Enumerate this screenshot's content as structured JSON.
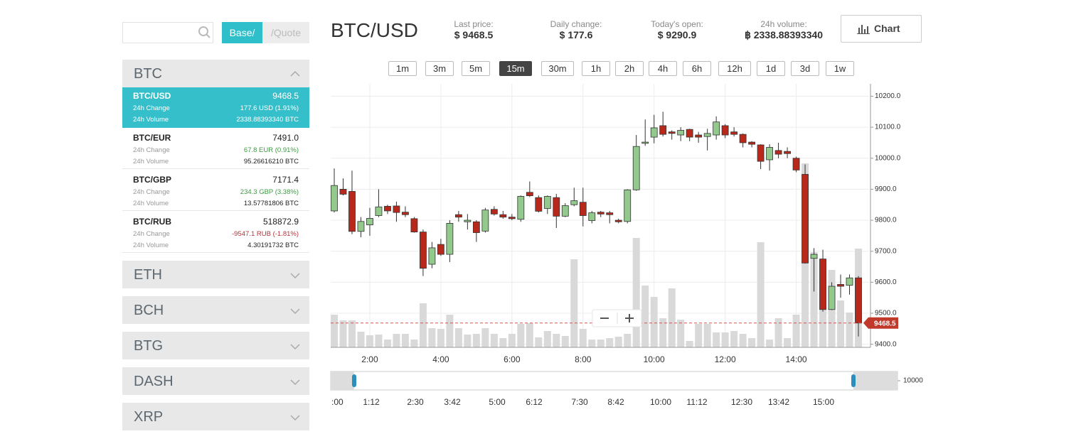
{
  "sidebar": {
    "toggle": [
      "Base/",
      "/Quote"
    ],
    "groups": [
      {
        "name": "BTC",
        "pairs": [
          {
            "pair": "BTC/USD",
            "price": "9468.5",
            "change_label": "24h Change",
            "change": "177.6 USD (1.91%)",
            "volume_label": "24h Volume",
            "volume": "2338.88393340 BTC"
          },
          {
            "pair": "BTC/EUR",
            "price": "7491.0",
            "change_label": "24h Change",
            "change": "67.8 EUR (0.91%)",
            "volume_label": "24h Volume",
            "volume": "95.26616210 BTC"
          },
          {
            "pair": "BTC/GBP",
            "price": "7171.4",
            "change_label": "24h Change",
            "change": "234.3 GBP (3.38%)",
            "volume_label": "24h Volume",
            "volume": "13.57781806 BTC"
          },
          {
            "pair": "BTC/RUB",
            "price": "518872.9",
            "change_label": "24h Change",
            "change": "-9547.1 RUB (-1.81%)",
            "volume_label": "24h Volume",
            "volume": "4.30191732 BTC"
          }
        ]
      },
      {
        "name": "ETH"
      },
      {
        "name": "BCH"
      },
      {
        "name": "BTG"
      },
      {
        "name": "DASH"
      },
      {
        "name": "XRP"
      }
    ]
  },
  "header": {
    "pair": "BTC/USD",
    "stats": [
      {
        "label": "Last price:",
        "value": "$ 9468.5"
      },
      {
        "label": "Daily change:",
        "value": "$ 177.6"
      },
      {
        "label": "Today's open:",
        "value": "$ 9290.9"
      },
      {
        "label": "24h volume:",
        "value": "฿ 2338.88393340"
      }
    ],
    "chart_button": "Chart"
  },
  "timeframes": [
    "1m",
    "3m",
    "5m",
    "15m",
    "30m",
    "1h",
    "2h",
    "4h",
    "6h",
    "12h",
    "1d",
    "3d",
    "1w"
  ],
  "active_timeframe": 3,
  "chart_data": {
    "type": "candlestick",
    "categories": [
      null,
      null,
      null,
      null,
      "2:00",
      null,
      null,
      null,
      null,
      null,
      null,
      null,
      "4:00",
      null,
      null,
      null,
      null,
      null,
      null,
      null,
      "6:00",
      null,
      null,
      null,
      null,
      null,
      null,
      null,
      "8:00",
      null,
      null,
      null,
      null,
      null,
      null,
      null,
      "10:00",
      null,
      null,
      null,
      null,
      null,
      null,
      null,
      "12:00",
      null,
      null,
      null,
      null,
      null,
      null,
      null,
      "14:00",
      null,
      null,
      null,
      null,
      null,
      null,
      null
    ],
    "open": [
      9830,
      9900,
      9893,
      9764,
      9785,
      9815,
      9845,
      9846,
      9826,
      9805,
      9762,
      9658,
      9722,
      9690,
      9818,
      9795,
      9795,
      9765,
      9835,
      9818,
      9810,
      9803,
      9890,
      9873,
      9838,
      9873,
      9813,
      9850,
      9858,
      9799,
      9826,
      9824,
      9800,
      9796,
      9898,
      10048,
      10068,
      10105,
      10085,
      10075,
      10093,
      10075,
      10070,
      10075,
      10105,
      10085,
      10077,
      10052,
      10043,
      9995,
      10025,
      10022,
      10000,
      9948,
      9677,
      9675,
      9512,
      9593,
      9590,
      9614
    ],
    "high": [
      9967,
      9935,
      9960,
      9810,
      9840,
      9900,
      9850,
      9860,
      9845,
      9810,
      9770,
      9730,
      9740,
      9800,
      9830,
      9820,
      9800,
      9840,
      9845,
      9830,
      9820,
      9880,
      9925,
      9880,
      9880,
      9885,
      9855,
      9905,
      9905,
      9830,
      9830,
      9830,
      9805,
      9900,
      10075,
      10125,
      10140,
      10150,
      10090,
      10100,
      10095,
      10085,
      10095,
      10135,
      10110,
      10100,
      10080,
      10055,
      10045,
      10045,
      10050,
      10035,
      10005,
      9980,
      9710,
      9705,
      9600,
      9625,
      9625,
      9620
    ],
    "low": [
      9825,
      9880,
      9755,
      9745,
      9750,
      9810,
      9820,
      9795,
      9810,
      9760,
      9620,
      9645,
      9685,
      9665,
      9795,
      9770,
      9730,
      9760,
      9815,
      9805,
      9800,
      9795,
      9875,
      9825,
      9820,
      9775,
      9810,
      9845,
      9780,
      9790,
      9810,
      9790,
      9790,
      9790,
      9895,
      10040,
      10048,
      10070,
      10060,
      10055,
      10055,
      10050,
      10025,
      10060,
      10065,
      10070,
      10035,
      10035,
      9965,
      9960,
      10000,
      10000,
      9955,
      9660,
      9570,
      9505,
      9510,
      9550,
      9560,
      9425
    ],
    "close": [
      9912,
      9884,
      9764,
      9796,
      9806,
      9843,
      9830,
      9825,
      9818,
      9762,
      9645,
      9711,
      9690,
      9790,
      9810,
      9800,
      9760,
      9833,
      9820,
      9810,
      9805,
      9877,
      9879,
      9829,
      9877,
      9813,
      9847,
      9863,
      9815,
      9824,
      9820,
      9818,
      9795,
      9898,
      10038,
      10052,
      10098,
      10077,
      10080,
      10090,
      10068,
      10068,
      10080,
      10117,
      10075,
      10077,
      10050,
      10045,
      9990,
      10035,
      10013,
      10015,
      9962,
      9662,
      9690,
      9512,
      9587,
      9587,
      9614,
      9468.5
    ],
    "volume": [
      46,
      38,
      38,
      22,
      17,
      18,
      11,
      19,
      19,
      11,
      62,
      27,
      26,
      46,
      27,
      18,
      19,
      27,
      19,
      13,
      19,
      33,
      34,
      14,
      23,
      19,
      16,
      124,
      26,
      11,
      11,
      13,
      15,
      19,
      154,
      87,
      71,
      41,
      83,
      39,
      9,
      33,
      33,
      21,
      21,
      23,
      19,
      13,
      148,
      11,
      41,
      13,
      46,
      259,
      134,
      123,
      109,
      66,
      49,
      139
    ],
    "up_color": "#93c98c",
    "down_color": "#b8291c",
    "volume_color": "#d9d9d9",
    "ylim": [
      9390,
      10240
    ],
    "yticks": [
      {
        "value": 9400,
        "label": "9400.0"
      },
      {
        "value": 9500,
        "label": "9500.0"
      },
      {
        "value": 9600,
        "label": "9600.0"
      },
      {
        "value": 9700,
        "label": "9700.0"
      },
      {
        "value": 9800,
        "label": "9800.0"
      },
      {
        "value": 9900,
        "label": "9900.0"
      },
      {
        "value": 10000,
        "label": "10000.0"
      },
      {
        "value": 10100,
        "label": "10100.0"
      },
      {
        "value": 10200,
        "label": "10200.0"
      }
    ],
    "grid": true
  },
  "navigator": {
    "labels": [
      ":00",
      "1:12",
      "2:30",
      "3:42",
      "5:00",
      "6:12",
      "7:30",
      "8:42",
      "10:00",
      "11:12",
      "12:30",
      "13:42",
      "15:00"
    ],
    "axis_label": "10000"
  }
}
